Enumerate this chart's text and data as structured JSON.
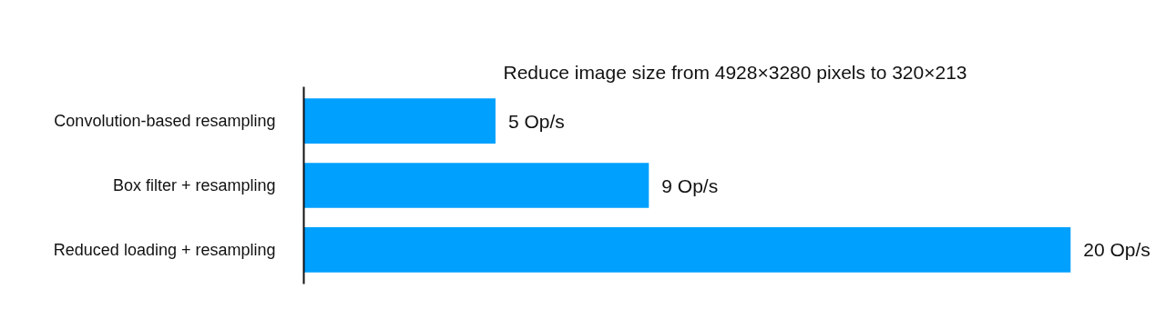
{
  "chart_data": {
    "type": "bar",
    "orientation": "horizontal",
    "title": "Reduce image size from 4928×3280 pixels to 320×213",
    "categories": [
      "Convolution-based resampling",
      "Box filter + resampling",
      "Reduced loading + resampling"
    ],
    "values": [
      5,
      9,
      20
    ],
    "color": "#00a0ff",
    "value_labels": [
      "5 Op/s",
      "9 Op/s",
      "20 Op/s"
    ],
    "tick_labels": "y"
  }
}
